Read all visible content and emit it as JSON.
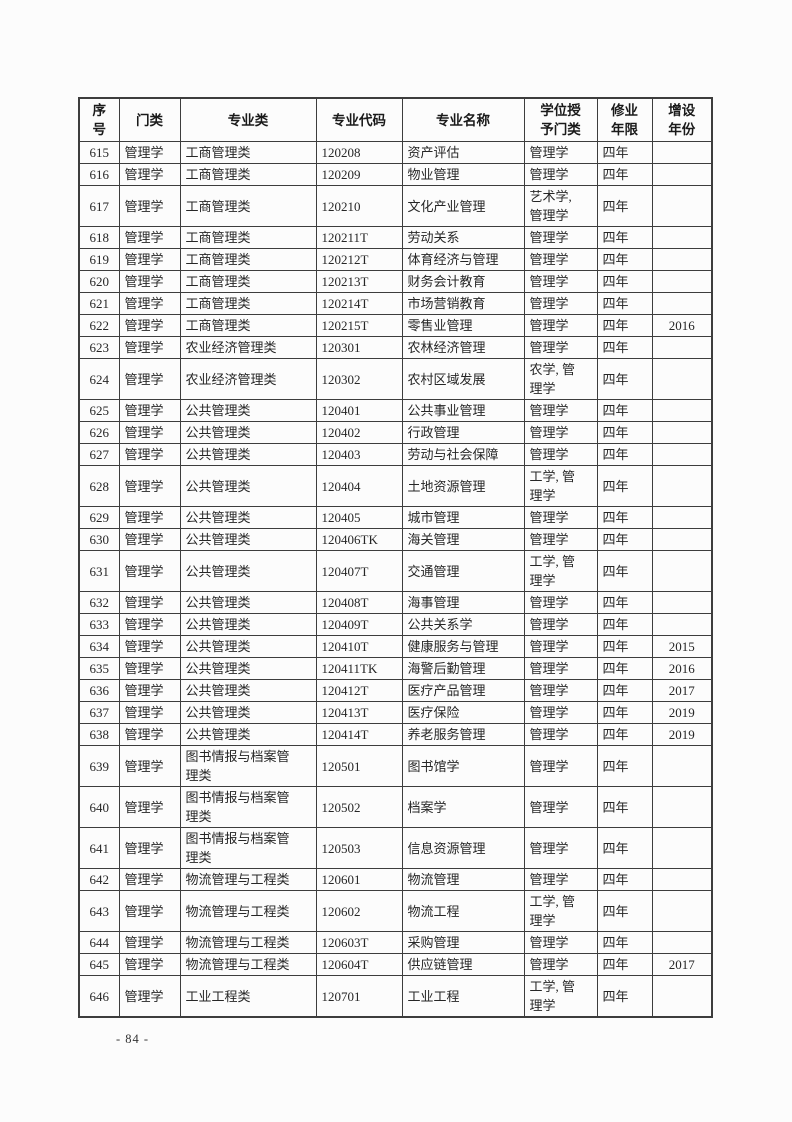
{
  "page": {
    "footer_page_number": "- 84 -"
  },
  "table": {
    "columns": [
      {
        "key": "index",
        "label": "序\n号"
      },
      {
        "key": "category",
        "label": "门类"
      },
      {
        "key": "major_class",
        "label": "专业类"
      },
      {
        "key": "major_code",
        "label": "专业代码"
      },
      {
        "key": "major_name",
        "label": "专业名称"
      },
      {
        "key": "degree_category",
        "label": "学位授\n予门类"
      },
      {
        "key": "duration",
        "label": "修业\n年限"
      },
      {
        "key": "year_added",
        "label": "增设\n年份"
      }
    ],
    "rows": [
      [
        "615",
        "管理学",
        "工商管理类",
        "120208",
        "资产评估",
        "管理学",
        "四年",
        ""
      ],
      [
        "616",
        "管理学",
        "工商管理类",
        "120209",
        "物业管理",
        "管理学",
        "四年",
        ""
      ],
      [
        "617",
        "管理学",
        "工商管理类",
        "120210",
        "文化产业管理",
        "艺术学,\n管理学",
        "四年",
        ""
      ],
      [
        "618",
        "管理学",
        "工商管理类",
        "120211T",
        "劳动关系",
        "管理学",
        "四年",
        ""
      ],
      [
        "619",
        "管理学",
        "工商管理类",
        "120212T",
        "体育经济与管理",
        "管理学",
        "四年",
        ""
      ],
      [
        "620",
        "管理学",
        "工商管理类",
        "120213T",
        "财务会计教育",
        "管理学",
        "四年",
        ""
      ],
      [
        "621",
        "管理学",
        "工商管理类",
        "120214T",
        "市场营销教育",
        "管理学",
        "四年",
        ""
      ],
      [
        "622",
        "管理学",
        "工商管理类",
        "120215T",
        "零售业管理",
        "管理学",
        "四年",
        "2016"
      ],
      [
        "623",
        "管理学",
        "农业经济管理类",
        "120301",
        "农林经济管理",
        "管理学",
        "四年",
        ""
      ],
      [
        "624",
        "管理学",
        "农业经济管理类",
        "120302",
        "农村区域发展",
        "农学, 管\n理学",
        "四年",
        ""
      ],
      [
        "625",
        "管理学",
        "公共管理类",
        "120401",
        "公共事业管理",
        "管理学",
        "四年",
        ""
      ],
      [
        "626",
        "管理学",
        "公共管理类",
        "120402",
        "行政管理",
        "管理学",
        "四年",
        ""
      ],
      [
        "627",
        "管理学",
        "公共管理类",
        "120403",
        "劳动与社会保障",
        "管理学",
        "四年",
        ""
      ],
      [
        "628",
        "管理学",
        "公共管理类",
        "120404",
        "土地资源管理",
        "工学, 管\n理学",
        "四年",
        ""
      ],
      [
        "629",
        "管理学",
        "公共管理类",
        "120405",
        "城市管理",
        "管理学",
        "四年",
        ""
      ],
      [
        "630",
        "管理学",
        "公共管理类",
        "120406TK",
        "海关管理",
        "管理学",
        "四年",
        ""
      ],
      [
        "631",
        "管理学",
        "公共管理类",
        "120407T",
        "交通管理",
        "工学, 管\n理学",
        "四年",
        ""
      ],
      [
        "632",
        "管理学",
        "公共管理类",
        "120408T",
        "海事管理",
        "管理学",
        "四年",
        ""
      ],
      [
        "633",
        "管理学",
        "公共管理类",
        "120409T",
        "公共关系学",
        "管理学",
        "四年",
        ""
      ],
      [
        "634",
        "管理学",
        "公共管理类",
        "120410T",
        "健康服务与管理",
        "管理学",
        "四年",
        "2015"
      ],
      [
        "635",
        "管理学",
        "公共管理类",
        "120411TK",
        "海警后勤管理",
        "管理学",
        "四年",
        "2016"
      ],
      [
        "636",
        "管理学",
        "公共管理类",
        "120412T",
        "医疗产品管理",
        "管理学",
        "四年",
        "2017"
      ],
      [
        "637",
        "管理学",
        "公共管理类",
        "120413T",
        "医疗保险",
        "管理学",
        "四年",
        "2019"
      ],
      [
        "638",
        "管理学",
        "公共管理类",
        "120414T",
        "养老服务管理",
        "管理学",
        "四年",
        "2019"
      ],
      [
        "639",
        "管理学",
        "图书情报与档案管\n理类",
        "120501",
        "图书馆学",
        "管理学",
        "四年",
        ""
      ],
      [
        "640",
        "管理学",
        "图书情报与档案管\n理类",
        "120502",
        "档案学",
        "管理学",
        "四年",
        ""
      ],
      [
        "641",
        "管理学",
        "图书情报与档案管\n理类",
        "120503",
        "信息资源管理",
        "管理学",
        "四年",
        ""
      ],
      [
        "642",
        "管理学",
        "物流管理与工程类",
        "120601",
        "物流管理",
        "管理学",
        "四年",
        ""
      ],
      [
        "643",
        "管理学",
        "物流管理与工程类",
        "120602",
        "物流工程",
        "工学, 管\n理学",
        "四年",
        ""
      ],
      [
        "644",
        "管理学",
        "物流管理与工程类",
        "120603T",
        "采购管理",
        "管理学",
        "四年",
        ""
      ],
      [
        "645",
        "管理学",
        "物流管理与工程类",
        "120604T",
        "供应链管理",
        "管理学",
        "四年",
        "2017"
      ],
      [
        "646",
        "管理学",
        "工业工程类",
        "120701",
        "工业工程",
        "工学, 管\n理学",
        "四年",
        ""
      ]
    ]
  }
}
